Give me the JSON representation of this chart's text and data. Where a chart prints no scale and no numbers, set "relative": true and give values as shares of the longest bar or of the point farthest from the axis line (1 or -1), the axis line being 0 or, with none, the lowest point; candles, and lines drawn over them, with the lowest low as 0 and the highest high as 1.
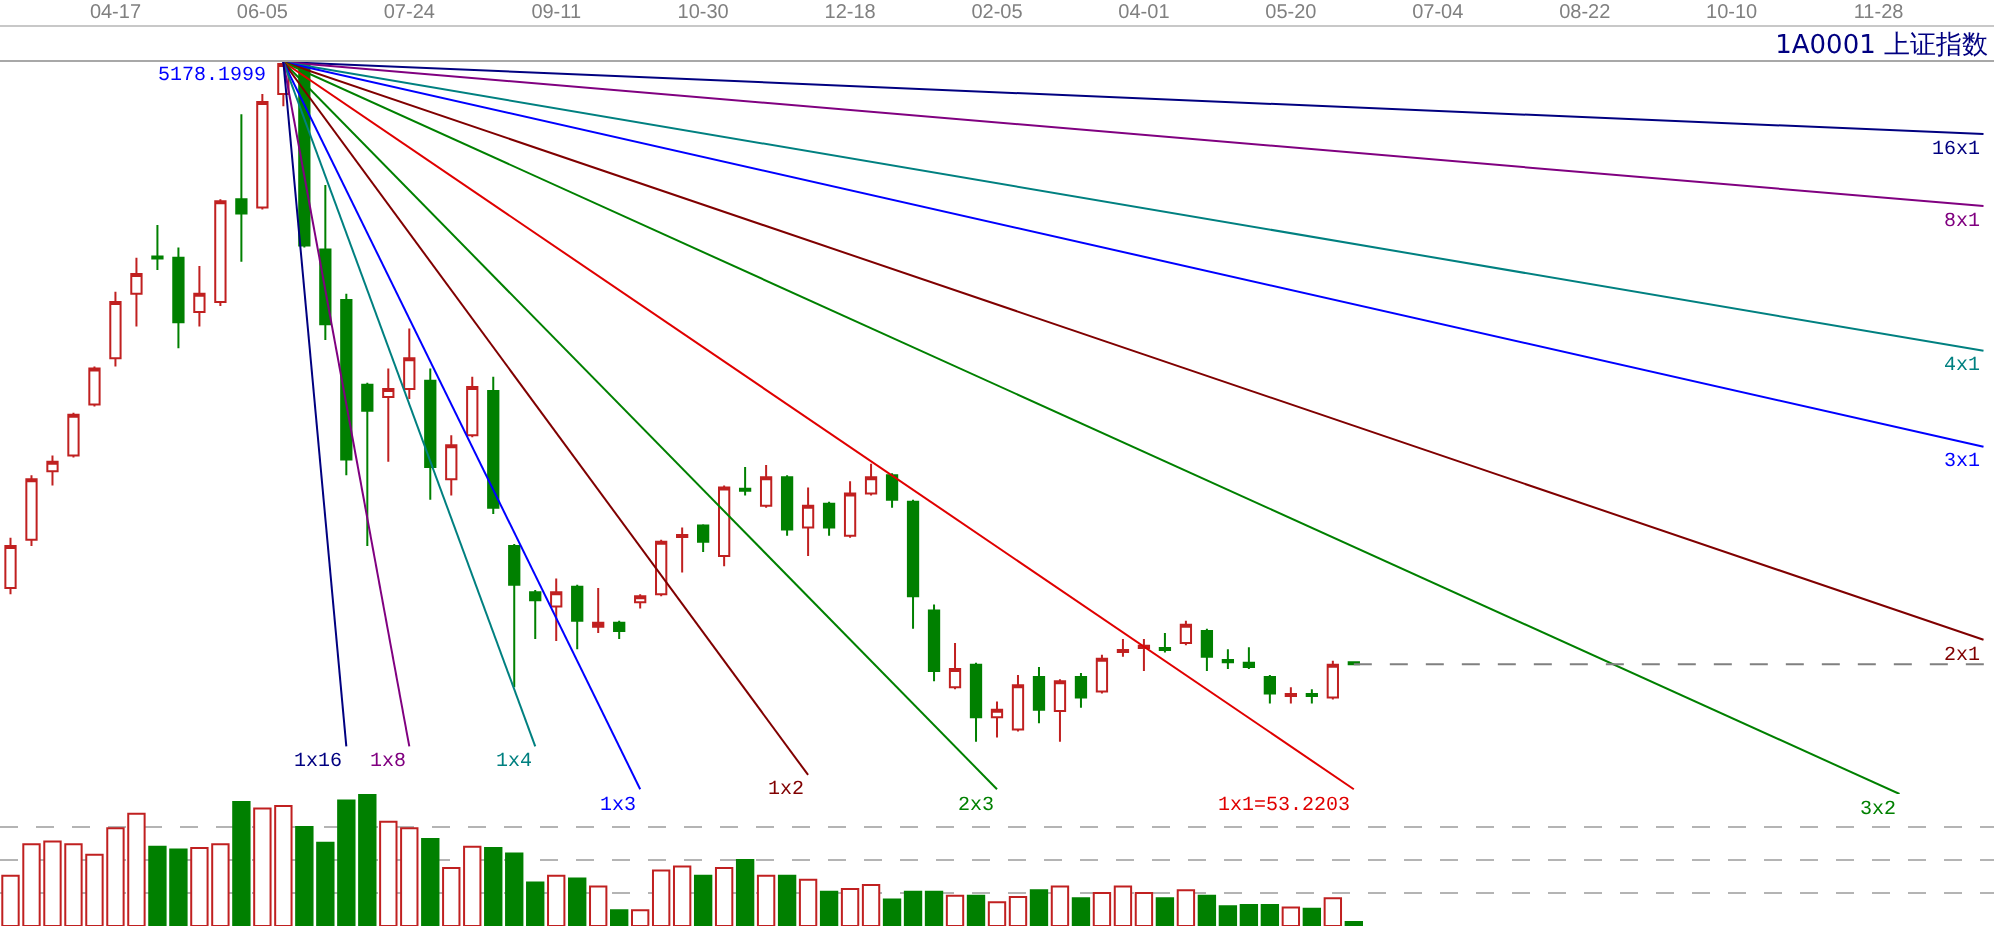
{
  "chart_data": [
    {
      "type": "candlestick",
      "title": "1A0001 上证指数",
      "relative": true,
      "tick_labels": "x",
      "categories": [
        null,
        null,
        null,
        null,
        null,
        "04-17",
        null,
        null,
        null,
        null,
        null,
        null,
        "06-05",
        null,
        null,
        null,
        null,
        null,
        null,
        "07-24",
        null,
        null,
        null,
        null,
        null,
        null,
        "09-11",
        null,
        null,
        null,
        null,
        null,
        null,
        "10-30",
        null,
        null,
        null,
        null,
        null,
        null,
        "12-18",
        null,
        null,
        null,
        null,
        null,
        null,
        "02-05",
        null,
        null,
        null,
        null,
        null,
        null,
        "04-01",
        null,
        null,
        null,
        null,
        null,
        null,
        "05-20",
        null,
        null,
        null,
        null,
        null,
        null,
        "07-04",
        null,
        null,
        null,
        null,
        null,
        null,
        "08-22",
        null,
        null,
        null,
        null,
        null,
        null,
        "10-10",
        null,
        null,
        null,
        null,
        null,
        null,
        "11-28",
        null,
        null,
        null,
        null,
        null
      ],
      "ohlc": [
        [
          0.226,
          0.3,
          0.217,
          0.288
        ],
        [
          0.297,
          0.392,
          0.288,
          0.386
        ],
        [
          0.398,
          0.421,
          0.377,
          0.412
        ],
        [
          0.421,
          0.484,
          0.418,
          0.481
        ],
        [
          0.496,
          0.552,
          0.493,
          0.549
        ],
        [
          0.564,
          0.662,
          0.552,
          0.647
        ],
        [
          0.659,
          0.712,
          0.611,
          0.688
        ],
        [
          0.714,
          0.76,
          0.694,
          0.711
        ],
        [
          0.712,
          0.727,
          0.579,
          0.617
        ],
        [
          0.632,
          0.7,
          0.611,
          0.659
        ],
        [
          0.647,
          0.798,
          0.641,
          0.795
        ],
        [
          0.798,
          0.923,
          0.706,
          0.777
        ],
        [
          0.786,
          0.953,
          0.783,
          0.941
        ],
        [
          0.953,
          1.0,
          0.935,
          0.997
        ],
        [
          0.997,
          0.999,
          0.727,
          0.73
        ],
        [
          0.724,
          0.819,
          0.591,
          0.614
        ],
        [
          0.65,
          0.659,
          0.392,
          0.415
        ],
        [
          0.525,
          0.528,
          0.288,
          0.487
        ],
        [
          0.507,
          0.549,
          0.412,
          0.519
        ],
        [
          0.519,
          0.608,
          0.504,
          0.564
        ],
        [
          0.531,
          0.549,
          0.356,
          0.404
        ],
        [
          0.386,
          0.451,
          0.362,
          0.436
        ],
        [
          0.451,
          0.537,
          0.448,
          0.522
        ],
        [
          0.516,
          0.537,
          0.335,
          0.344
        ],
        [
          0.288,
          0.291,
          0.08,
          0.231
        ],
        [
          0.22,
          0.223,
          0.151,
          0.208
        ],
        [
          0.199,
          0.24,
          0.148,
          0.22
        ],
        [
          0.228,
          0.231,
          0.136,
          0.178
        ],
        [
          0.169,
          0.226,
          0.16,
          0.175
        ],
        [
          0.175,
          0.178,
          0.151,
          0.163
        ],
        [
          0.205,
          0.217,
          0.196,
          0.214
        ],
        [
          0.217,
          0.297,
          0.214,
          0.294
        ],
        [
          0.301,
          0.315,
          0.249,
          0.304
        ],
        [
          0.318,
          0.32,
          0.279,
          0.294
        ],
        [
          0.273,
          0.377,
          0.258,
          0.374
        ],
        [
          0.372,
          0.404,
          0.362,
          0.369
        ],
        [
          0.347,
          0.407,
          0.344,
          0.389
        ],
        [
          0.389,
          0.392,
          0.303,
          0.312
        ],
        [
          0.315,
          0.374,
          0.273,
          0.347
        ],
        [
          0.35,
          0.353,
          0.303,
          0.315
        ],
        [
          0.303,
          0.383,
          0.3,
          0.365
        ],
        [
          0.365,
          0.409,
          0.362,
          0.389
        ],
        [
          0.392,
          0.395,
          0.344,
          0.356
        ],
        [
          0.353,
          0.356,
          0.166,
          0.214
        ],
        [
          0.193,
          0.202,
          0.089,
          0.104
        ],
        [
          0.08,
          0.145,
          0.077,
          0.107
        ],
        [
          0.113,
          0.116,
          0.0,
          0.036
        ],
        [
          0.036,
          0.059,
          0.006,
          0.047
        ],
        [
          0.018,
          0.098,
          0.015,
          0.083
        ],
        [
          0.095,
          0.11,
          0.027,
          0.047
        ],
        [
          0.045,
          0.092,
          0.0,
          0.089
        ],
        [
          0.095,
          0.101,
          0.05,
          0.065
        ],
        [
          0.074,
          0.128,
          0.071,
          0.122
        ],
        [
          0.132,
          0.151,
          0.125,
          0.135
        ],
        [
          0.138,
          0.151,
          0.104,
          0.141
        ],
        [
          0.138,
          0.16,
          0.131,
          0.135
        ],
        [
          0.145,
          0.178,
          0.142,
          0.172
        ],
        [
          0.163,
          0.166,
          0.104,
          0.125
        ],
        [
          0.12,
          0.136,
          0.107,
          0.117
        ],
        [
          0.116,
          0.139,
          0.107,
          0.11
        ],
        [
          0.095,
          0.098,
          0.056,
          0.071
        ],
        [
          0.067,
          0.08,
          0.056,
          0.07
        ],
        [
          0.07,
          0.077,
          0.056,
          0.067
        ],
        [
          0.065,
          0.119,
          0.062,
          0.113
        ],
        [
          0.117,
          0.117,
          0.114,
          0.114
        ],
        null,
        null,
        null,
        null,
        null,
        null,
        null,
        null,
        null,
        null,
        null,
        null,
        null,
        null,
        null,
        null,
        null,
        null,
        null,
        null,
        null,
        null,
        null,
        null,
        null,
        null,
        null,
        null,
        null,
        null
      ],
      "colors": [
        "#c02020",
        "#c02020",
        "#c02020",
        "#c02020",
        "#c02020",
        "#c02020",
        "#c02020",
        "#008000",
        "#008000",
        "#c02020",
        "#c02020",
        "#008000",
        "#c02020",
        "#c02020",
        "#008000",
        "#008000",
        "#008000",
        "#008000",
        "#c02020",
        "#c02020",
        "#008000",
        "#c02020",
        "#c02020",
        "#008000",
        "#008000",
        "#008000",
        "#c02020",
        "#008000",
        "#c02020",
        "#008000",
        "#c02020",
        "#c02020",
        "#c02020",
        "#008000",
        "#c02020",
        "#008000",
        "#c02020",
        "#008000",
        "#c02020",
        "#008000",
        "#c02020",
        "#c02020",
        "#008000",
        "#008000",
        "#008000",
        "#c02020",
        "#008000",
        "#c02020",
        "#c02020",
        "#008000",
        "#c02020",
        "#008000",
        "#c02020",
        "#c02020",
        "#c02020",
        "#008000",
        "#c02020",
        "#008000",
        "#008000",
        "#008000",
        "#008000",
        "#c02020",
        "#008000",
        "#c02020",
        "#008000",
        null,
        null,
        null,
        null,
        null,
        null,
        null,
        null,
        null,
        null,
        null,
        null,
        null,
        null,
        null,
        null,
        null,
        null,
        null,
        null,
        null,
        null,
        null,
        null,
        null,
        null,
        null,
        null,
        null,
        null
      ],
      "series": [
        {
          "type": "line",
          "name": "16x1",
          "color": "#000080",
          "values": [
            null,
            null,
            null,
            null,
            null,
            null,
            null,
            null,
            null,
            null,
            null,
            null,
            null,
            1.0,
            null,
            null,
            null,
            null,
            null,
            null,
            null,
            null,
            null,
            null,
            null,
            null,
            null,
            null,
            null,
            null,
            null,
            null,
            null,
            null,
            null,
            null,
            null,
            null,
            null,
            null,
            null,
            null,
            null,
            null,
            null,
            null,
            null,
            null,
            null,
            null,
            null,
            null,
            null,
            null,
            null,
            null,
            null,
            null,
            null,
            null,
            null,
            null,
            null,
            null,
            null,
            null,
            null,
            null,
            null,
            null,
            null,
            null,
            null,
            null,
            null,
            null,
            null,
            null,
            null,
            null,
            null,
            null,
            null,
            null,
            null,
            null,
            null,
            null,
            null,
            null,
            null,
            null,
            null,
            null,
            0.894
          ]
        },
        {
          "type": "line",
          "name": "8x1",
          "color": "#800080",
          "values": [
            null,
            null,
            null,
            null,
            null,
            null,
            null,
            null,
            null,
            null,
            null,
            null,
            null,
            1.0,
            null,
            null,
            null,
            null,
            null,
            null,
            null,
            null,
            null,
            null,
            null,
            null,
            null,
            null,
            null,
            null,
            null,
            null,
            null,
            null,
            null,
            null,
            null,
            null,
            null,
            null,
            null,
            null,
            null,
            null,
            null,
            null,
            null,
            null,
            null,
            null,
            null,
            null,
            null,
            null,
            null,
            null,
            null,
            null,
            null,
            null,
            null,
            null,
            null,
            null,
            null,
            null,
            null,
            null,
            null,
            null,
            null,
            null,
            null,
            null,
            null,
            null,
            null,
            null,
            null,
            null,
            null,
            null,
            null,
            null,
            null,
            null,
            null,
            null,
            null,
            null,
            null,
            null,
            null,
            null,
            0.788
          ]
        },
        {
          "type": "line",
          "name": "4x1",
          "color": "#008080",
          "values": [
            null,
            null,
            null,
            null,
            null,
            null,
            null,
            null,
            null,
            null,
            null,
            null,
            null,
            1.0,
            null,
            null,
            null,
            null,
            null,
            null,
            null,
            null,
            null,
            null,
            null,
            null,
            null,
            null,
            null,
            null,
            null,
            null,
            null,
            null,
            null,
            null,
            null,
            null,
            null,
            null,
            null,
            null,
            null,
            null,
            null,
            null,
            null,
            null,
            null,
            null,
            null,
            null,
            null,
            null,
            null,
            null,
            null,
            null,
            null,
            null,
            null,
            null,
            null,
            null,
            null,
            null,
            null,
            null,
            null,
            null,
            null,
            null,
            null,
            null,
            null,
            null,
            null,
            null,
            null,
            null,
            null,
            null,
            null,
            null,
            null,
            null,
            null,
            null,
            null,
            null,
            null,
            null,
            null,
            null,
            0.575
          ]
        },
        {
          "type": "line",
          "name": "3x1",
          "color": "#0000ff",
          "values": [
            null,
            null,
            null,
            null,
            null,
            null,
            null,
            null,
            null,
            null,
            null,
            null,
            null,
            1.0,
            null,
            null,
            null,
            null,
            null,
            null,
            null,
            null,
            null,
            null,
            null,
            null,
            null,
            null,
            null,
            null,
            null,
            null,
            null,
            null,
            null,
            null,
            null,
            null,
            null,
            null,
            null,
            null,
            null,
            null,
            null,
            null,
            null,
            null,
            null,
            null,
            null,
            null,
            null,
            null,
            null,
            null,
            null,
            null,
            null,
            null,
            null,
            null,
            null,
            null,
            null,
            null,
            null,
            null,
            null,
            null,
            null,
            null,
            null,
            null,
            null,
            null,
            null,
            null,
            null,
            null,
            null,
            null,
            null,
            null,
            null,
            null,
            null,
            null,
            null,
            null,
            null,
            null,
            null,
            null,
            0.434
          ]
        },
        {
          "type": "line",
          "name": "2x1",
          "color": "#800000",
          "values": [
            null,
            null,
            null,
            null,
            null,
            null,
            null,
            null,
            null,
            null,
            null,
            null,
            null,
            1.0,
            null,
            null,
            null,
            null,
            null,
            null,
            null,
            null,
            null,
            null,
            null,
            null,
            null,
            null,
            null,
            null,
            null,
            null,
            null,
            null,
            null,
            null,
            null,
            null,
            null,
            null,
            null,
            null,
            null,
            null,
            null,
            null,
            null,
            null,
            null,
            null,
            null,
            null,
            null,
            null,
            null,
            null,
            null,
            null,
            null,
            null,
            null,
            null,
            null,
            null,
            null,
            null,
            null,
            null,
            null,
            null,
            null,
            null,
            null,
            null,
            null,
            null,
            null,
            null,
            null,
            null,
            null,
            null,
            null,
            null,
            null,
            null,
            null,
            null,
            null,
            null,
            null,
            null,
            null,
            null,
            0.15
          ]
        },
        {
          "type": "line",
          "name": "3x2",
          "color": "#008000",
          "values": [
            null,
            null,
            null,
            null,
            null,
            null,
            null,
            null,
            null,
            null,
            null,
            null,
            null,
            1.0,
            null,
            null,
            null,
            null,
            null,
            null,
            null,
            null,
            null,
            null,
            null,
            null,
            null,
            null,
            null,
            null,
            null,
            null,
            null,
            null,
            null,
            null,
            null,
            null,
            null,
            null,
            null,
            null,
            null,
            null,
            null,
            null,
            null,
            null,
            null,
            null,
            null,
            null,
            null,
            null,
            null,
            null,
            null,
            null,
            null,
            null,
            null,
            null,
            null,
            null,
            null,
            null,
            null,
            null,
            null,
            null,
            null,
            null,
            null,
            null,
            null,
            null,
            null,
            null,
            null,
            null,
            null,
            null,
            null,
            null,
            null,
            null,
            null,
            null,
            null,
            null,
            -0.077,
            null,
            null,
            null,
            null
          ]
        },
        {
          "type": "line",
          "name": "1x1=53.2203",
          "color": "#e00000",
          "values": [
            null,
            null,
            null,
            null,
            null,
            null,
            null,
            null,
            null,
            null,
            null,
            null,
            null,
            1.0,
            null,
            null,
            null,
            null,
            null,
            null,
            null,
            null,
            null,
            null,
            null,
            null,
            null,
            null,
            null,
            null,
            null,
            null,
            null,
            null,
            null,
            null,
            null,
            null,
            null,
            null,
            null,
            null,
            null,
            null,
            null,
            null,
            null,
            null,
            null,
            null,
            null,
            null,
            null,
            null,
            null,
            null,
            null,
            null,
            null,
            null,
            null,
            null,
            null,
            null,
            -0.07,
            null,
            null,
            null,
            null,
            null,
            null,
            null,
            null,
            null,
            null,
            null,
            null,
            null,
            null,
            null,
            null,
            null,
            null,
            null,
            null,
            null,
            null,
            null,
            null,
            null,
            null,
            null,
            null,
            null,
            null
          ]
        },
        {
          "type": "line",
          "name": "2x3",
          "color": "#008000",
          "values": [
            null,
            null,
            null,
            null,
            null,
            null,
            null,
            null,
            null,
            null,
            null,
            null,
            null,
            1.0,
            null,
            null,
            null,
            null,
            null,
            null,
            null,
            null,
            null,
            null,
            null,
            null,
            null,
            null,
            null,
            null,
            null,
            null,
            null,
            null,
            null,
            null,
            null,
            null,
            null,
            null,
            null,
            null,
            null,
            null,
            null,
            null,
            null,
            -0.07,
            null,
            null,
            null,
            null,
            null,
            null,
            null,
            null,
            null,
            null,
            null,
            null,
            null,
            null,
            null,
            null,
            null,
            null,
            null,
            null,
            null,
            null,
            null,
            null,
            null,
            null,
            null,
            null,
            null,
            null,
            null,
            null,
            null,
            null,
            null,
            null,
            null,
            null,
            null,
            null,
            null,
            null,
            null,
            null,
            null,
            null,
            null
          ]
        },
        {
          "type": "line",
          "name": "1x2",
          "color": "#800000",
          "values": [
            null,
            null,
            null,
            null,
            null,
            null,
            null,
            null,
            null,
            null,
            null,
            null,
            null,
            1.0,
            null,
            null,
            null,
            null,
            null,
            null,
            null,
            null,
            null,
            null,
            null,
            null,
            null,
            null,
            null,
            null,
            null,
            null,
            null,
            null,
            null,
            null,
            null,
            null,
            -0.049,
            null,
            null,
            null,
            null,
            null,
            null,
            null,
            null,
            null,
            null,
            null,
            null,
            null,
            null,
            null,
            null,
            null,
            null,
            null,
            null,
            null,
            null,
            null,
            null,
            null,
            null,
            null,
            null,
            null,
            null,
            null,
            null,
            null,
            null,
            null,
            null,
            null,
            null,
            null,
            null,
            null,
            null,
            null,
            null,
            null,
            null,
            null,
            null,
            null,
            null,
            null,
            null,
            null,
            null,
            null,
            null
          ]
        },
        {
          "type": "line",
          "name": "1x3",
          "color": "#0000ff",
          "values": [
            null,
            null,
            null,
            null,
            null,
            null,
            null,
            null,
            null,
            null,
            null,
            null,
            null,
            1.0,
            null,
            null,
            null,
            null,
            null,
            null,
            null,
            null,
            null,
            null,
            null,
            null,
            null,
            null,
            null,
            null,
            -0.07,
            null,
            null,
            null,
            null,
            null,
            null,
            null,
            null,
            null,
            null,
            null,
            null,
            null,
            null,
            null,
            null,
            null,
            null,
            null,
            null,
            null,
            null,
            null,
            null,
            null,
            null,
            null,
            null,
            null,
            null,
            null,
            null,
            null,
            null,
            null,
            null,
            null,
            null,
            null,
            null,
            null,
            null,
            null,
            null,
            null,
            null,
            null,
            null,
            null,
            null,
            null,
            null,
            null,
            null,
            null,
            null,
            null,
            null,
            null,
            null,
            null,
            null,
            null,
            null
          ]
        },
        {
          "type": "line",
          "name": "1x4",
          "color": "#008080",
          "values": [
            null,
            null,
            null,
            null,
            null,
            null,
            null,
            null,
            null,
            null,
            null,
            null,
            null,
            1.0,
            null,
            null,
            null,
            null,
            null,
            null,
            null,
            null,
            null,
            null,
            null,
            -0.007,
            null,
            null,
            null,
            null,
            null,
            null,
            null,
            null,
            null,
            null,
            null,
            null,
            null,
            null,
            null,
            null,
            null,
            null,
            null,
            null,
            null,
            null,
            null,
            null,
            null,
            null,
            null,
            null,
            null,
            null,
            null,
            null,
            null,
            null,
            null,
            null,
            null,
            null,
            null,
            null,
            null,
            null,
            null,
            null,
            null,
            null,
            null,
            null,
            null,
            null,
            null,
            null,
            null,
            null,
            null,
            null,
            null,
            null,
            null,
            null,
            null,
            null,
            null,
            null,
            null,
            null,
            null,
            null,
            null
          ]
        },
        {
          "type": "line",
          "name": "1x8",
          "color": "#800080",
          "values": [
            null,
            null,
            null,
            null,
            null,
            null,
            null,
            null,
            null,
            null,
            null,
            null,
            null,
            1.0,
            null,
            null,
            null,
            null,
            null,
            -0.007,
            null,
            null,
            null,
            null,
            null,
            null,
            null,
            null,
            null,
            null,
            null,
            null,
            null,
            null,
            null,
            null,
            null,
            null,
            null,
            null,
            null,
            null,
            null,
            null,
            null,
            null,
            null,
            null,
            null,
            null,
            null,
            null,
            null,
            null,
            null,
            null,
            null,
            null,
            null,
            null,
            null,
            null,
            null,
            null,
            null,
            null,
            null,
            null,
            null,
            null,
            null,
            null,
            null,
            null,
            null,
            null,
            null,
            null,
            null,
            null,
            null,
            null,
            null,
            null,
            null,
            null,
            null,
            null,
            null,
            null,
            null,
            null,
            null,
            null,
            null
          ]
        },
        {
          "type": "line",
          "name": "1x16",
          "color": "#000080",
          "values": [
            null,
            null,
            null,
            null,
            null,
            null,
            null,
            null,
            null,
            null,
            null,
            null,
            null,
            1.0,
            null,
            null,
            -0.007,
            null,
            null,
            null,
            null,
            null,
            null,
            null,
            null,
            null,
            null,
            null,
            null,
            null,
            null,
            null,
            null,
            null,
            null,
            null,
            null,
            null,
            null,
            null,
            null,
            null,
            null,
            null,
            null,
            null,
            null,
            null,
            null,
            null,
            null,
            null,
            null,
            null,
            null,
            null,
            null,
            null,
            null,
            null,
            null,
            null,
            null,
            null,
            null,
            null,
            null,
            null,
            null,
            null,
            null,
            null,
            null,
            null,
            null,
            null,
            null,
            null,
            null,
            null,
            null,
            null,
            null,
            null,
            null,
            null,
            null,
            null,
            null,
            null,
            null,
            null,
            null,
            null,
            null
          ]
        }
      ],
      "annotations": [
        "5178.1999"
      ],
      "ref_lines": [
        {
          "axis": "y",
          "value": 0.114,
          "color": "#808080",
          "line_style": "dashed"
        }
      ]
    },
    {
      "type": "bar",
      "relative": true,
      "grid": "y",
      "categories": [
        null,
        null,
        null,
        null,
        null,
        null,
        null,
        null,
        null,
        null,
        null,
        null,
        null,
        null,
        null,
        null,
        null,
        null,
        null,
        null,
        null,
        null,
        null,
        null,
        null,
        null,
        null,
        null,
        null,
        null,
        null,
        null,
        null,
        null,
        null,
        null,
        null,
        null,
        null,
        null,
        null,
        null,
        null,
        null,
        null,
        null,
        null,
        null,
        null,
        null,
        null,
        null,
        null,
        null,
        null,
        null,
        null,
        null,
        null,
        null,
        null,
        null,
        null,
        null,
        null,
        null,
        null,
        null,
        null,
        null,
        null,
        null,
        null,
        null,
        null,
        null,
        null,
        null,
        null,
        null,
        null,
        null,
        null,
        null,
        null,
        null,
        null,
        null,
        null,
        null,
        null,
        null,
        null,
        null,
        null
      ],
      "values": [
        0.38,
        0.62,
        0.64,
        0.62,
        0.54,
        0.74,
        0.85,
        0.6,
        0.58,
        0.59,
        0.62,
        0.94,
        0.89,
        0.91,
        0.75,
        0.63,
        0.95,
        1.0,
        0.79,
        0.74,
        0.66,
        0.44,
        0.6,
        0.59,
        0.55,
        0.33,
        0.38,
        0.36,
        0.3,
        0.12,
        0.12,
        0.42,
        0.45,
        0.38,
        0.44,
        0.5,
        0.38,
        0.38,
        0.35,
        0.26,
        0.28,
        0.31,
        0.2,
        0.26,
        0.26,
        0.23,
        0.23,
        0.18,
        0.22,
        0.27,
        0.3,
        0.21,
        0.25,
        0.3,
        0.25,
        0.21,
        0.27,
        0.23,
        0.15,
        0.16,
        0.16,
        0.14,
        0.13,
        0.21,
        0.03,
        null,
        null,
        null,
        null,
        null,
        null,
        null,
        null,
        null,
        null,
        null,
        null,
        null,
        null,
        null,
        null,
        null,
        null,
        null,
        null,
        null,
        null,
        null,
        null,
        null,
        null,
        null,
        null,
        null,
        null
      ],
      "colors": [
        "#c02020",
        "#c02020",
        "#c02020",
        "#c02020",
        "#c02020",
        "#c02020",
        "#c02020",
        "#008000",
        "#008000",
        "#c02020",
        "#c02020",
        "#008000",
        "#c02020",
        "#c02020",
        "#008000",
        "#008000",
        "#008000",
        "#008000",
        "#c02020",
        "#c02020",
        "#008000",
        "#c02020",
        "#c02020",
        "#008000",
        "#008000",
        "#008000",
        "#c02020",
        "#008000",
        "#c02020",
        "#008000",
        "#c02020",
        "#c02020",
        "#c02020",
        "#008000",
        "#c02020",
        "#008000",
        "#c02020",
        "#008000",
        "#c02020",
        "#008000",
        "#c02020",
        "#c02020",
        "#008000",
        "#008000",
        "#008000",
        "#c02020",
        "#008000",
        "#c02020",
        "#c02020",
        "#008000",
        "#c02020",
        "#008000",
        "#c02020",
        "#c02020",
        "#c02020",
        "#008000",
        "#c02020",
        "#008000",
        "#008000",
        "#008000",
        "#008000",
        "#c02020",
        "#008000",
        "#c02020",
        "#008000",
        null,
        null,
        null,
        null,
        null,
        null,
        null,
        null,
        null,
        null,
        null,
        null,
        null,
        null,
        null,
        null,
        null,
        null,
        null,
        null,
        null,
        null,
        null,
        null,
        null,
        null,
        null,
        null,
        null,
        null
      ]
    }
  ]
}
